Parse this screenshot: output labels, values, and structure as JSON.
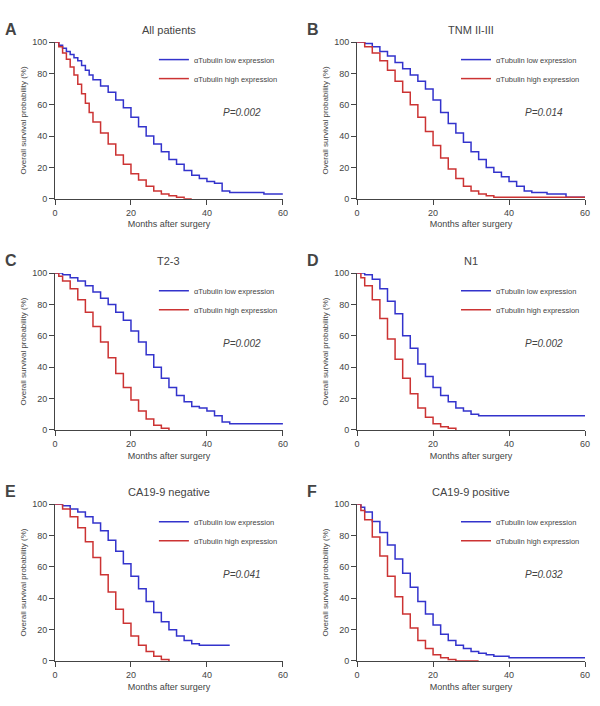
{
  "chart_data": [
    {
      "type": "step",
      "title": "All patients",
      "xlabel": "Months after surgery",
      "ylabel": "Overall survival probability (%)",
      "xlim": [
        0,
        60
      ],
      "ylim": [
        0,
        100
      ],
      "xticks": [
        0,
        20,
        40,
        60
      ],
      "yticks": [
        0,
        20,
        40,
        60,
        80,
        100
      ],
      "grid": false,
      "legend": "upper right",
      "annotations": [
        "A",
        "P=0.002"
      ],
      "series": [
        {
          "name": "αTubulin low expression",
          "color": "#3333cc",
          "x": [
            0,
            1,
            2,
            3,
            4,
            5,
            6,
            7,
            8,
            9,
            10,
            12,
            14,
            16,
            18,
            20,
            22,
            24,
            26,
            28,
            30,
            32,
            34,
            36,
            38,
            40,
            42,
            44,
            46,
            48,
            55,
            60
          ],
          "values": [
            100,
            98,
            96,
            94,
            92,
            90,
            88,
            85,
            82,
            79,
            76,
            72,
            68,
            63,
            58,
            52,
            46,
            40,
            35,
            30,
            25,
            22,
            18,
            15,
            13,
            11,
            10,
            5,
            4,
            4,
            3,
            3
          ]
        },
        {
          "name": "αTubulin high expression",
          "color": "#cc3333",
          "x": [
            0,
            1,
            2,
            3,
            4,
            5,
            6,
            7,
            8,
            9,
            10,
            12,
            14,
            16,
            18,
            20,
            22,
            24,
            26,
            28,
            30,
            32,
            34,
            36
          ],
          "values": [
            100,
            97,
            93,
            89,
            84,
            79,
            73,
            67,
            61,
            55,
            49,
            42,
            35,
            28,
            22,
            16,
            12,
            8,
            5,
            3,
            2,
            1,
            0,
            0
          ]
        }
      ]
    },
    {
      "type": "step",
      "title": "TNM II-III",
      "xlabel": "Months after surgery",
      "ylabel": "Overall survival probability (%)",
      "xlim": [
        0,
        60
      ],
      "ylim": [
        0,
        100
      ],
      "xticks": [
        0,
        20,
        40,
        60
      ],
      "yticks": [
        0,
        20,
        40,
        60,
        80,
        100
      ],
      "grid": false,
      "legend": "upper right",
      "annotations": [
        "B",
        "P=0.014"
      ],
      "series": [
        {
          "name": "αTubulin low expression",
          "color": "#3333cc",
          "x": [
            0,
            2,
            4,
            6,
            8,
            10,
            12,
            14,
            16,
            18,
            20,
            22,
            24,
            26,
            28,
            30,
            32,
            34,
            36,
            38,
            40,
            42,
            44,
            46,
            48,
            50,
            55,
            60
          ],
          "values": [
            100,
            99,
            97,
            94,
            91,
            87,
            83,
            79,
            75,
            70,
            63,
            55,
            48,
            42,
            36,
            30,
            25,
            20,
            17,
            14,
            11,
            8,
            5,
            4,
            4,
            3,
            1,
            1
          ]
        },
        {
          "name": "αTubulin high expression",
          "color": "#cc3333",
          "x": [
            0,
            2,
            4,
            6,
            8,
            10,
            12,
            14,
            16,
            18,
            20,
            22,
            24,
            26,
            28,
            30,
            32,
            34,
            36,
            38,
            40,
            42,
            44,
            46,
            48,
            55,
            60
          ],
          "values": [
            100,
            97,
            93,
            88,
            82,
            75,
            68,
            60,
            52,
            43,
            34,
            26,
            19,
            13,
            8,
            5,
            3,
            2,
            1,
            1,
            1,
            1,
            1,
            1,
            1,
            1,
            1
          ]
        }
      ]
    },
    {
      "type": "step",
      "title": "T2-3",
      "xlabel": "Months after surgery",
      "ylabel": "Overall survival probability (%)",
      "xlim": [
        0,
        60
      ],
      "ylim": [
        0,
        100
      ],
      "xticks": [
        0,
        20,
        40,
        60
      ],
      "yticks": [
        0,
        20,
        40,
        60,
        80,
        100
      ],
      "grid": false,
      "legend": "upper right",
      "annotations": [
        "C",
        "P=0.002"
      ],
      "series": [
        {
          "name": "αTubulin low expression",
          "color": "#3333cc",
          "x": [
            0,
            1,
            2,
            4,
            6,
            8,
            10,
            12,
            14,
            16,
            18,
            20,
            22,
            24,
            26,
            28,
            30,
            32,
            34,
            36,
            38,
            40,
            42,
            44,
            46,
            50,
            55,
            60
          ],
          "values": [
            100,
            100,
            99,
            97,
            95,
            92,
            88,
            84,
            80,
            75,
            70,
            63,
            56,
            48,
            40,
            33,
            27,
            22,
            18,
            15,
            14,
            12,
            9,
            5,
            4,
            4,
            4,
            4
          ]
        },
        {
          "name": "αTubulin high expression",
          "color": "#cc3333",
          "x": [
            0,
            1,
            2,
            4,
            6,
            8,
            10,
            12,
            14,
            16,
            18,
            20,
            22,
            24,
            26,
            28,
            30
          ],
          "values": [
            100,
            98,
            95,
            90,
            83,
            75,
            66,
            56,
            46,
            36,
            27,
            19,
            12,
            7,
            3,
            1,
            0
          ]
        }
      ]
    },
    {
      "type": "step",
      "title": "N1",
      "xlabel": "Months after surgery",
      "ylabel": "Overall survival probability (%)",
      "xlim": [
        0,
        60
      ],
      "ylim": [
        0,
        100
      ],
      "xticks": [
        0,
        20,
        40,
        60
      ],
      "yticks": [
        0,
        20,
        40,
        60,
        80,
        100
      ],
      "grid": false,
      "legend": "upper right",
      "annotations": [
        "D",
        "P=0.002"
      ],
      "series": [
        {
          "name": "αTubulin low expression",
          "color": "#3333cc",
          "x": [
            0,
            1,
            2,
            4,
            6,
            8,
            10,
            12,
            14,
            16,
            18,
            20,
            22,
            24,
            26,
            28,
            30,
            32,
            34,
            36,
            38,
            40,
            42,
            44,
            46,
            50,
            55,
            60
          ],
          "values": [
            100,
            100,
            99,
            96,
            90,
            82,
            74,
            60,
            52,
            42,
            34,
            27,
            22,
            18,
            14,
            12,
            10,
            9,
            9,
            9,
            9,
            9,
            9,
            9,
            9,
            9,
            9,
            9
          ]
        },
        {
          "name": "αTubulin high expression",
          "color": "#cc3333",
          "x": [
            0,
            1,
            2,
            4,
            6,
            8,
            10,
            12,
            14,
            16,
            18,
            20,
            22,
            24,
            26
          ],
          "values": [
            100,
            97,
            92,
            83,
            71,
            58,
            45,
            33,
            23,
            14,
            8,
            4,
            2,
            1,
            0
          ]
        }
      ]
    },
    {
      "type": "step",
      "title": "CA19-9 negative",
      "xlabel": "Months after surgery",
      "ylabel": "Overall survival probability (%)",
      "xlim": [
        0,
        60
      ],
      "ylim": [
        0,
        100
      ],
      "xticks": [
        0,
        20,
        40,
        60
      ],
      "yticks": [
        0,
        20,
        40,
        60,
        80,
        100
      ],
      "grid": false,
      "legend": "upper right",
      "annotations": [
        "E",
        "P=0.041"
      ],
      "series": [
        {
          "name": "αTubulin low expression",
          "color": "#3333cc",
          "x": [
            0,
            2,
            4,
            6,
            8,
            10,
            12,
            14,
            16,
            18,
            20,
            22,
            24,
            26,
            28,
            30,
            32,
            34,
            36,
            38,
            40,
            42,
            44,
            46
          ],
          "values": [
            100,
            99,
            97,
            95,
            92,
            88,
            83,
            77,
            70,
            62,
            54,
            46,
            38,
            31,
            25,
            20,
            16,
            13,
            11,
            10,
            10,
            10,
            10,
            10
          ]
        },
        {
          "name": "αTubulin high expression",
          "color": "#cc3333",
          "x": [
            0,
            2,
            4,
            6,
            8,
            10,
            12,
            14,
            16,
            18,
            20,
            22,
            24,
            26,
            28,
            30
          ],
          "values": [
            100,
            97,
            92,
            85,
            76,
            66,
            55,
            44,
            33,
            24,
            16,
            10,
            6,
            3,
            1,
            0
          ]
        }
      ]
    },
    {
      "type": "step",
      "title": "CA19-9 positive",
      "xlabel": "Months after surgery",
      "ylabel": "Overall survival probability (%)",
      "xlim": [
        0,
        60
      ],
      "ylim": [
        0,
        100
      ],
      "xticks": [
        0,
        20,
        40,
        60
      ],
      "yticks": [
        0,
        20,
        40,
        60,
        80,
        100
      ],
      "grid": false,
      "legend": "upper right",
      "annotations": [
        "F",
        "P=0.032"
      ],
      "series": [
        {
          "name": "αTubulin low expression",
          "color": "#3333cc",
          "x": [
            0,
            1,
            2,
            4,
            6,
            8,
            10,
            12,
            14,
            16,
            18,
            20,
            22,
            24,
            26,
            28,
            30,
            32,
            34,
            36,
            38,
            40,
            42,
            44,
            46,
            50,
            55,
            60
          ],
          "values": [
            100,
            98,
            95,
            89,
            82,
            74,
            65,
            56,
            47,
            38,
            30,
            23,
            17,
            13,
            10,
            8,
            6,
            5,
            4,
            3,
            3,
            2,
            2,
            2,
            2,
            2,
            2,
            2
          ]
        },
        {
          "name": "αTubulin high expression",
          "color": "#cc3333",
          "x": [
            0,
            1,
            2,
            4,
            6,
            8,
            10,
            12,
            14,
            16,
            18,
            20,
            22,
            24,
            26,
            28,
            30,
            32
          ],
          "values": [
            100,
            96,
            90,
            79,
            67,
            54,
            41,
            30,
            21,
            13,
            8,
            4,
            2,
            1,
            0,
            0,
            0,
            0
          ]
        }
      ]
    }
  ]
}
